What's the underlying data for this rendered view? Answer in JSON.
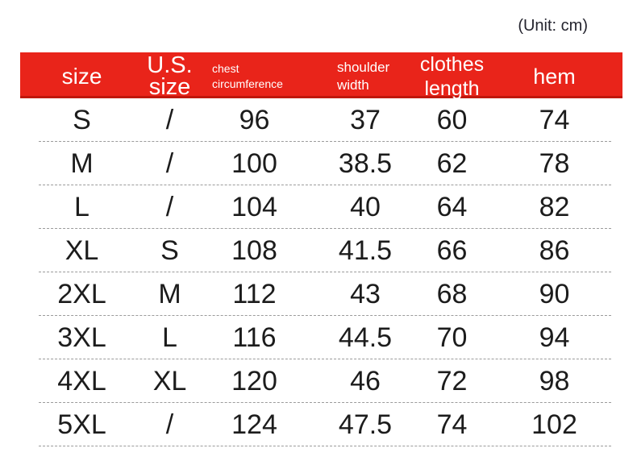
{
  "unit_label": "(Unit: cm)",
  "colors": {
    "accent_red": "#e9241a",
    "accent_red_dark": "#c0170c",
    "header_text": "#ffffff",
    "body_text": "#1c1c1c",
    "divider": "#9b9b9b"
  },
  "table": {
    "columns": [
      {
        "key": "size",
        "label": "size",
        "lines": [
          "size"
        ]
      },
      {
        "key": "us_size",
        "label": "U.S. size",
        "lines": [
          "U.S.",
          "size"
        ]
      },
      {
        "key": "chest",
        "label": "chest circumference",
        "lines": [
          "chest",
          "circumference"
        ]
      },
      {
        "key": "shoulder",
        "label": "shoulder width",
        "lines": [
          "shoulder",
          "width"
        ]
      },
      {
        "key": "length",
        "label": "clothes length",
        "lines": [
          "clothes",
          "length"
        ]
      },
      {
        "key": "hem",
        "label": "hem",
        "lines": [
          "hem"
        ]
      }
    ],
    "rows": [
      [
        "S",
        "/",
        "96",
        "37",
        "60",
        "74"
      ],
      [
        "M",
        "/",
        "100",
        "38.5",
        "62",
        "78"
      ],
      [
        "L",
        "/",
        "104",
        "40",
        "64",
        "82"
      ],
      [
        "XL",
        "S",
        "108",
        "41.5",
        "66",
        "86"
      ],
      [
        "2XL",
        "M",
        "112",
        "43",
        "68",
        "90"
      ],
      [
        "3XL",
        "L",
        "116",
        "44.5",
        "70",
        "94"
      ],
      [
        "4XL",
        "XL",
        "120",
        "46",
        "72",
        "98"
      ],
      [
        "5XL",
        "/",
        "124",
        "47.5",
        "74",
        "102"
      ]
    ]
  }
}
